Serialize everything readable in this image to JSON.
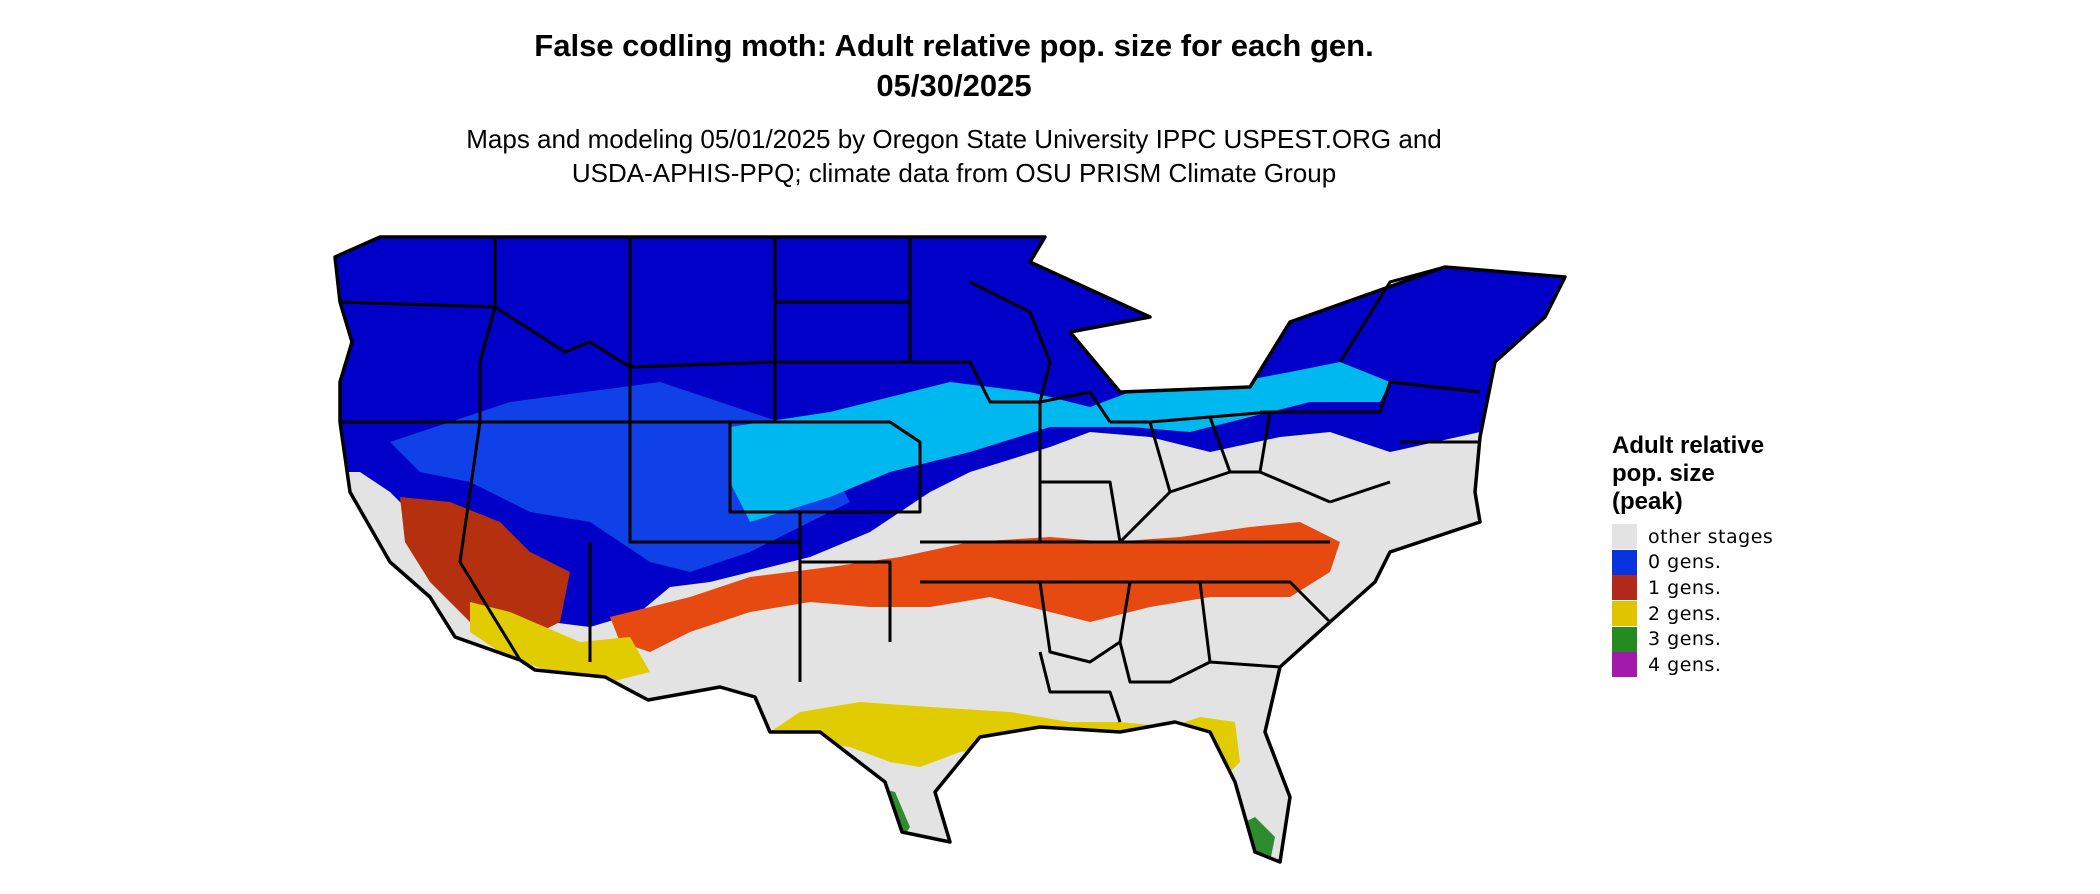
{
  "title_line1": "False codling moth: Adult relative pop. size for each gen.",
  "title_line2": "05/30/2025",
  "subtitle_line1": "Maps and modeling 05/01/2025 by Oregon State University IPPC USPEST.ORG and",
  "subtitle_line2": "USDA-APHIS-PPQ; climate data from OSU PRISM Climate Group",
  "legend": {
    "title_line1": "Adult relative",
    "title_line2": "pop. size",
    "title_line3": "(peak)",
    "items": [
      {
        "label": "other stages",
        "color": "#e3e3e3"
      },
      {
        "label": "0 gens.",
        "color": "#0a33e0"
      },
      {
        "label": "1 gens.",
        "color": "#b0291b"
      },
      {
        "label": "2 gens.",
        "color": "#e0c400"
      },
      {
        "label": "3 gens.",
        "color": "#238b22"
      },
      {
        "label": "4 gens.",
        "color": "#a21aa9"
      }
    ]
  },
  "map_colors": {
    "base": "#e3e3e3",
    "gen0_dark": "#0000c8",
    "gen0_mid": "#1040e8",
    "gen0_light": "#00b8f0",
    "gen1": "#e64a10",
    "gen1_dark": "#b4300e",
    "gen2": "#e0cc00",
    "gen3": "#2e8b2e",
    "border": "#000000"
  }
}
